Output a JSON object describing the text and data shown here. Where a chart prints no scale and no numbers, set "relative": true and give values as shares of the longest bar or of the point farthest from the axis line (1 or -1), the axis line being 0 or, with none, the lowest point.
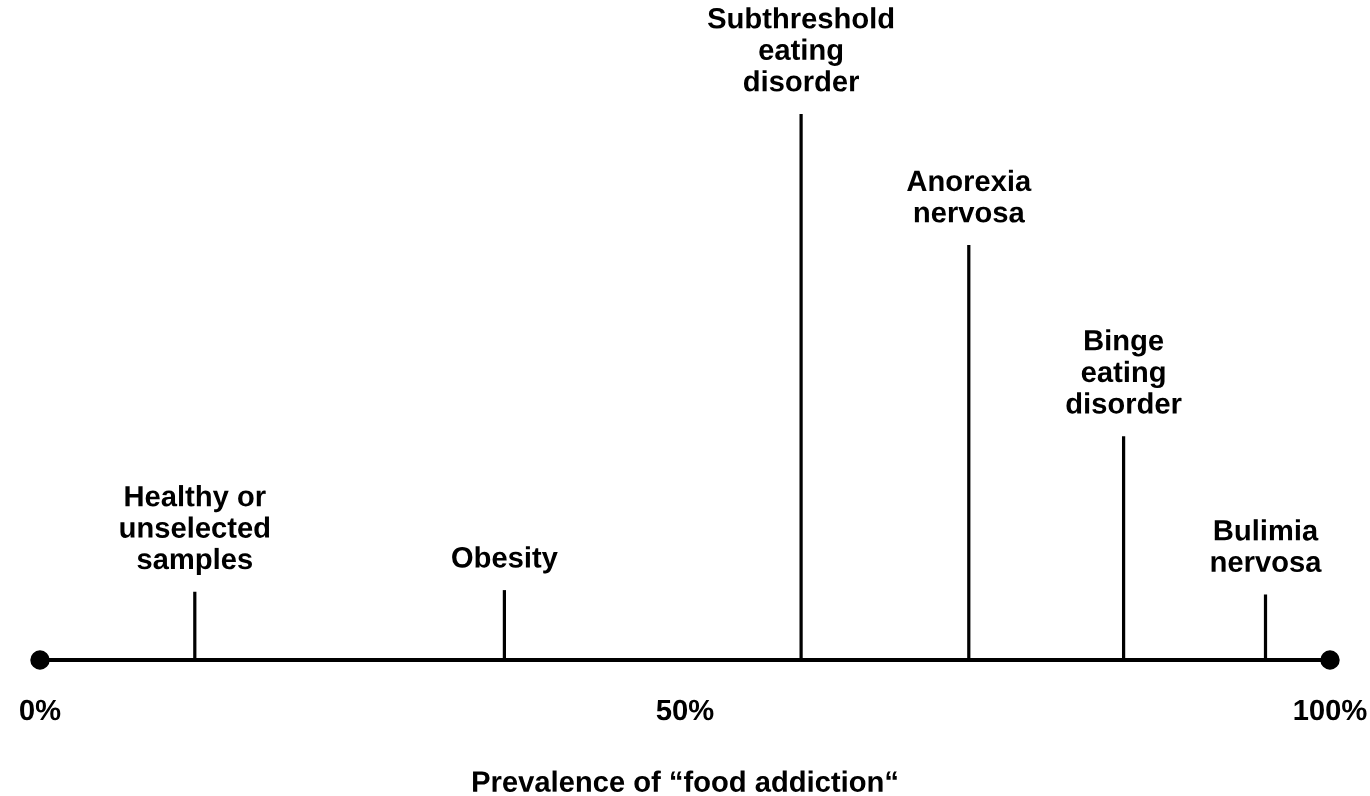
{
  "chart_data": {
    "type": "bar",
    "relative": true,
    "x": [
      12,
      36,
      59,
      72,
      84,
      95
    ],
    "values": [
      0.125,
      0.128,
      1,
      0.76,
      0.41,
      0.12
    ],
    "color": "#000000",
    "xlim": [
      0,
      100
    ],
    "xticks": [
      {
        "value": 0,
        "label": "0%"
      },
      {
        "value": 50,
        "label": "50%"
      },
      {
        "value": 100,
        "label": "100%"
      }
    ],
    "xlabel": "Prevalence of “food addiction“",
    "annotations": [
      "Healthy or\nunselected\nsamples",
      "Obesity",
      "Subthreshold\neating\ndisorder",
      "Anorexia\nnervosa",
      "Binge\neating\ndisorder",
      "Bulimia\nnervosa"
    ]
  }
}
